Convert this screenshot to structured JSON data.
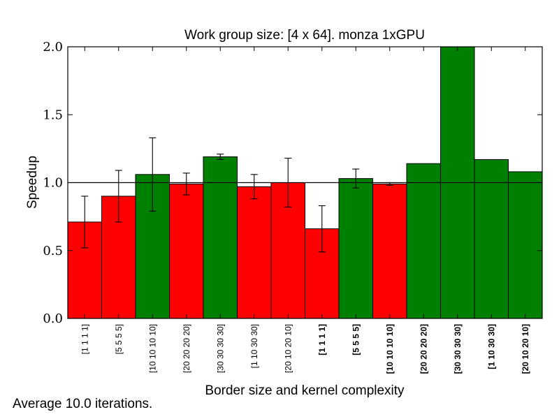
{
  "chart_data": {
    "type": "bar",
    "title": "Work group size: [4 x 64]. monza 1xGPU",
    "xlabel": "Border size and kernel complexity",
    "ylabel": "Speedup",
    "ylim": [
      0.0,
      2.0
    ],
    "yticks": [
      "0.0",
      "0.5",
      "1.0",
      "1.5",
      "2.0"
    ],
    "ytick_values": [
      0.0,
      0.5,
      1.0,
      1.5,
      2.0
    ],
    "reference_line": 1.0,
    "grid": false,
    "categories": [
      "[1 1 1 1]",
      "[5 5 5 5]",
      "[10 10 10 10]",
      "[20 20 20 20]",
      "[30 30 30 30]",
      "[1 10 30 30]",
      "[20 10 20 10]",
      "[1 1 1 1]",
      "[5 5 5 5]",
      "[10 10 10 10]",
      "[20 20 20 20]",
      "[30 30 30 30]",
      "[1 10 30 30]",
      "[20 10 20 10]"
    ],
    "bold_labels": [
      false,
      false,
      false,
      false,
      false,
      false,
      false,
      true,
      true,
      true,
      true,
      true,
      true,
      true
    ],
    "values": [
      0.71,
      0.9,
      1.06,
      0.99,
      1.19,
      0.97,
      1.0,
      0.66,
      1.03,
      0.99,
      1.14,
      2.0,
      1.17,
      1.08
    ],
    "errors": [
      0.19,
      0.19,
      0.27,
      0.08,
      0.02,
      0.09,
      0.18,
      0.17,
      0.07,
      0.01,
      0.0,
      0.0,
      0.0,
      0.0
    ],
    "colors": {
      "below": "#ff0000",
      "above": "#008000"
    }
  },
  "footnote": "Average 10.0 iterations."
}
